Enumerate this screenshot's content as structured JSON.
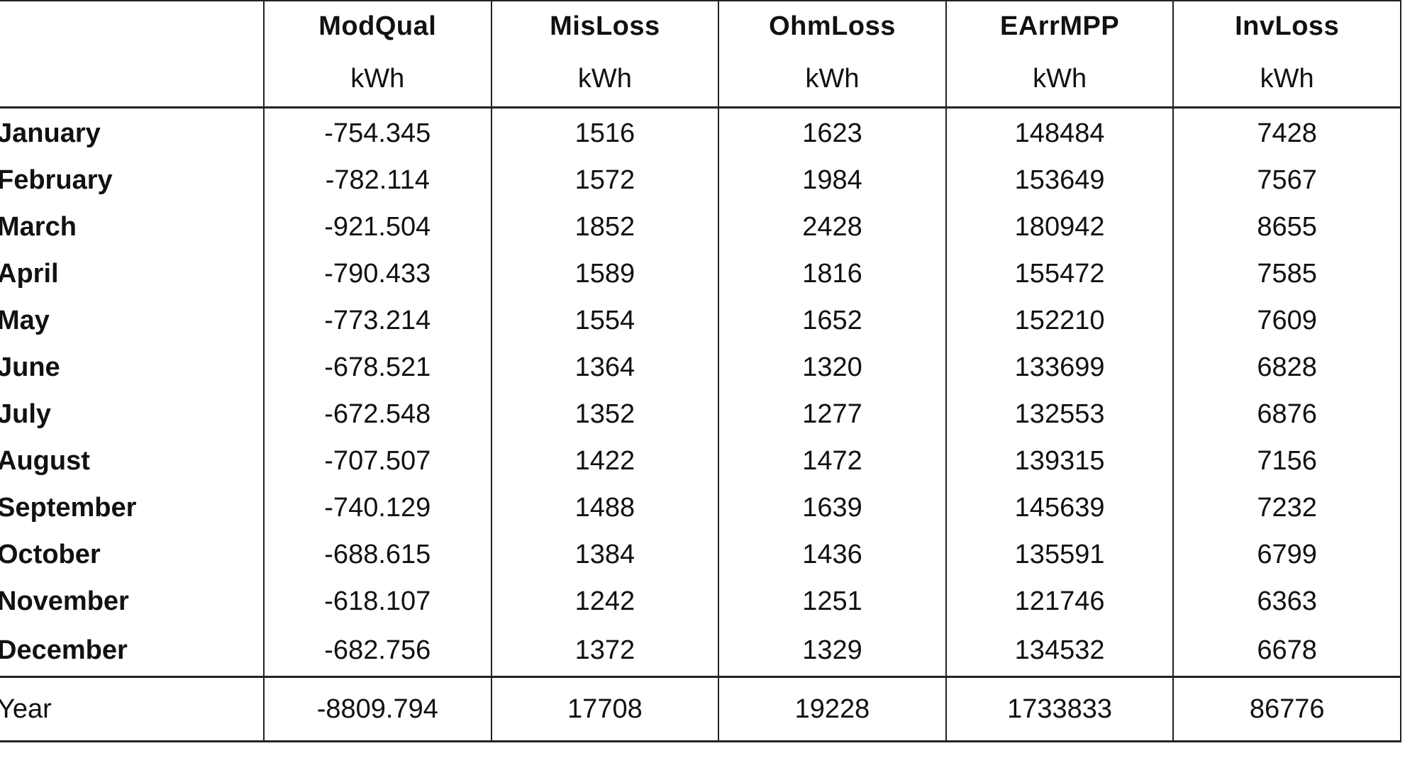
{
  "chart_data": {
    "type": "table",
    "columns": [
      {
        "name": "ModQual",
        "unit": "kWh"
      },
      {
        "name": "MisLoss",
        "unit": "kWh"
      },
      {
        "name": "OhmLoss",
        "unit": "kWh"
      },
      {
        "name": "EArrMPP",
        "unit": "kWh"
      },
      {
        "name": "InvLoss",
        "unit": "kWh"
      }
    ],
    "rows": [
      {
        "label": "January",
        "values": [
          "-754.345",
          "1516",
          "1623",
          "148484",
          "7428"
        ]
      },
      {
        "label": "February",
        "values": [
          "-782.114",
          "1572",
          "1984",
          "153649",
          "7567"
        ]
      },
      {
        "label": "March",
        "values": [
          "-921.504",
          "1852",
          "2428",
          "180942",
          "8655"
        ]
      },
      {
        "label": "April",
        "values": [
          "-790.433",
          "1589",
          "1816",
          "155472",
          "7585"
        ]
      },
      {
        "label": "May",
        "values": [
          "-773.214",
          "1554",
          "1652",
          "152210",
          "7609"
        ]
      },
      {
        "label": "June",
        "values": [
          "-678.521",
          "1364",
          "1320",
          "133699",
          "6828"
        ]
      },
      {
        "label": "July",
        "values": [
          "-672.548",
          "1352",
          "1277",
          "132553",
          "6876"
        ]
      },
      {
        "label": "August",
        "values": [
          "-707.507",
          "1422",
          "1472",
          "139315",
          "7156"
        ]
      },
      {
        "label": "September",
        "values": [
          "-740.129",
          "1488",
          "1639",
          "145639",
          "7232"
        ]
      },
      {
        "label": "October",
        "values": [
          "-688.615",
          "1384",
          "1436",
          "135591",
          "6799"
        ]
      },
      {
        "label": "November",
        "values": [
          "-618.107",
          "1242",
          "1251",
          "121746",
          "6363"
        ]
      },
      {
        "label": "December",
        "values": [
          "-682.756",
          "1372",
          "1329",
          "134532",
          "6678"
        ]
      }
    ],
    "total": {
      "label": "Year",
      "values": [
        "-8809.794",
        "17708",
        "19228",
        "1733833",
        "86776"
      ]
    }
  }
}
